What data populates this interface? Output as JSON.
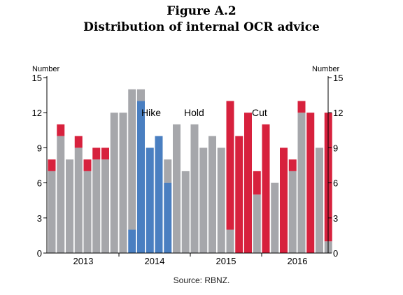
{
  "figure_label": "Figure A.2",
  "figure_title": "Distribution of internal OCR advice",
  "source": "Source: RBNZ.",
  "colors": {
    "hike": "#4a7fc1",
    "hold": "#a6a7ab",
    "cut": "#d7213d"
  },
  "chart_data": {
    "type": "bar",
    "stacked": true,
    "title": "Distribution of internal OCR advice",
    "ylabel_left": "Number",
    "ylabel_right": "Number",
    "ylim": [
      0,
      15
    ],
    "yticks": [
      0,
      3,
      6,
      9,
      12,
      15
    ],
    "grid": false,
    "xtick_labels": [
      "2013",
      "2014",
      "2015",
      "2016"
    ],
    "legend": [
      "Hike",
      "Hold",
      "Cut"
    ],
    "series": [
      {
        "name": "Hike",
        "values": [
          0,
          0,
          0,
          0,
          0,
          0,
          0,
          0,
          0,
          2,
          13,
          9,
          10,
          6,
          0,
          0,
          0,
          0,
          0,
          0,
          0,
          0,
          0,
          0,
          0,
          0,
          0,
          0,
          0,
          0,
          0,
          0
        ]
      },
      {
        "name": "Hold",
        "values": [
          7,
          10,
          8,
          9,
          7,
          8,
          8,
          12,
          12,
          12,
          1,
          0,
          0,
          2,
          11,
          7,
          11,
          9,
          10,
          9,
          2,
          0,
          0,
          5,
          0,
          6,
          0,
          7,
          12,
          0,
          9,
          1
        ]
      },
      {
        "name": "Cut",
        "values": [
          1,
          1,
          0,
          1,
          1,
          1,
          1,
          0,
          0,
          0,
          0,
          0,
          0,
          0,
          0,
          0,
          0,
          0,
          0,
          0,
          11,
          10,
          12,
          2,
          11,
          0,
          9,
          1,
          1,
          12,
          0,
          11
        ]
      }
    ]
  }
}
